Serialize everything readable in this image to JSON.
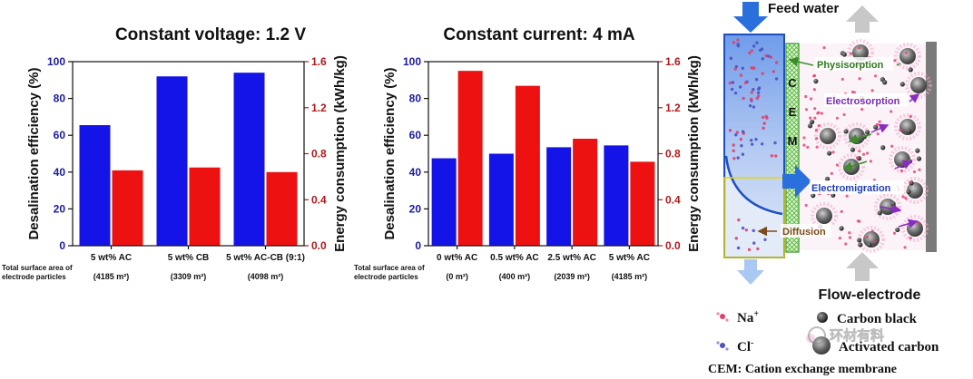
{
  "colors": {
    "efficiency_bar": "#1414e8",
    "energy_bar": "#ee1111",
    "left_axis": "#1a1aa0",
    "right_axis": "#b01a1a",
    "channel": "#a9c3f0",
    "membrane": "#6ccf3c",
    "sodium": "#e04070",
    "chloride": "#5050c0",
    "carbon": "#444444"
  },
  "surface_area_label": [
    "Total surface area of",
    "electrode particles"
  ],
  "chart_data": [
    {
      "type": "bar",
      "title": "Constant voltage: 1.2 V",
      "ylabel": "Desalination efficiency (%)",
      "y2label": "Energy consumption (kWh/kg)",
      "ylim": [
        0,
        100
      ],
      "y2lim": [
        0,
        1.6
      ],
      "yticks": [
        "0",
        "20",
        "40",
        "60",
        "80",
        "100"
      ],
      "y2ticks": [
        "0.0",
        "0.4",
        "0.8",
        "1.2",
        "1.6"
      ],
      "categories": [
        "5 wt% AC",
        "5 wt% CB",
        "5 wt% AC-CB (9:1)"
      ],
      "sublabels": [
        "(4185 m²)",
        "(3309 m²)",
        "(4098 m²)"
      ],
      "series": [
        {
          "name": "Desalination efficiency",
          "axis": "left",
          "values": [
            65.5,
            92,
            94
          ]
        },
        {
          "name": "Energy consumption",
          "axis": "right",
          "values": [
            0.655,
            0.68,
            0.64
          ]
        }
      ]
    },
    {
      "type": "bar",
      "title": "Constant current: 4 mA",
      "ylabel": "Desalination efficiency (%)",
      "y2label": "Energy consumption (kWh/kg)",
      "ylim": [
        0,
        100
      ],
      "y2lim": [
        0,
        1.6
      ],
      "yticks": [
        "0",
        "20",
        "40",
        "60",
        "80",
        "100"
      ],
      "y2ticks": [
        "0.0",
        "0.4",
        "0.8",
        "1.2",
        "1.6"
      ],
      "categories": [
        "0 wt% AC",
        "0.5 wt% AC",
        "2.5 wt% AC",
        "5 wt% AC"
      ],
      "sublabels": [
        "(0 m²)",
        "(400 m²)",
        "(2039 m²)",
        "(4185 m²)"
      ],
      "series": [
        {
          "name": "Desalination efficiency",
          "axis": "left",
          "values": [
            47.5,
            50,
            53.5,
            54.5
          ]
        },
        {
          "name": "Energy consumption",
          "axis": "right",
          "values": [
            1.52,
            1.39,
            0.93,
            0.73
          ]
        }
      ]
    }
  ],
  "diagram": {
    "feed_water": "Feed water",
    "cem_letters": [
      "C",
      "E",
      "M"
    ],
    "physisorption": "Physisorption",
    "electrosorption": "Electrosorption",
    "electromigration": "Electromigration",
    "diffusion": "Diffusion",
    "flow_electrode": "Flow-electrode",
    "legend": {
      "na_symbol": "Na",
      "na_charge": "+",
      "cl_symbol": "Cl",
      "cl_charge": "-",
      "carbon_black": "Carbon black",
      "activated_carbon": "Activated carbon",
      "cem_definition": "CEM: Cation exchange membrane"
    },
    "watermark": "环材有料"
  }
}
